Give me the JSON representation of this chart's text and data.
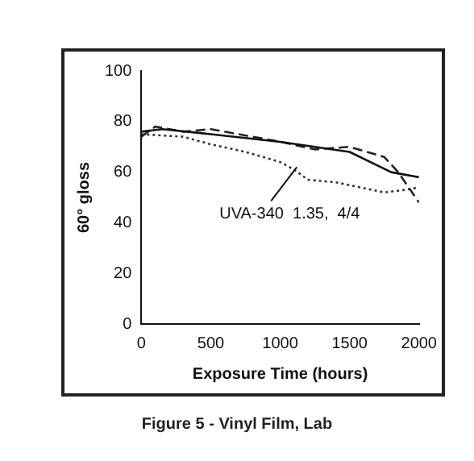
{
  "chart_data": {
    "type": "line",
    "title": "Figure 5 - Vinyl Film, Lab",
    "xlabel": "Exposure Time (hours)",
    "ylabel": "60° gloss",
    "xlim": [
      0,
      2000
    ],
    "xticks": [
      0,
      500,
      1000,
      1500,
      2000
    ],
    "ylim": [
      0,
      100
    ],
    "yticks": [
      0,
      20,
      40,
      60,
      80,
      100
    ],
    "grid": false,
    "legend": false,
    "marker": "none",
    "series": [
      {
        "color": "#111111",
        "line_style": "solid",
        "x": [
          0,
          150,
          500,
          1000,
          1250,
          1500,
          1800,
          2000
        ],
        "values": [
          76,
          77,
          75,
          72,
          70,
          68,
          60,
          58
        ]
      },
      {
        "color": "#222222",
        "line_style": "dashed",
        "x": [
          0,
          100,
          300,
          500,
          1000,
          1250,
          1500,
          1750,
          1850,
          2000
        ],
        "values": [
          74,
          78,
          76,
          77,
          72,
          69,
          70,
          66,
          60,
          48
        ]
      },
      {
        "color": "#333333",
        "line_style": "dotted",
        "x": [
          0,
          300,
          500,
          750,
          1000,
          1100,
          1200,
          1400,
          1750,
          1900,
          2000
        ],
        "values": [
          75,
          74,
          71,
          68,
          64,
          61,
          57,
          56,
          52,
          53,
          54
        ]
      }
    ],
    "annotations": [
      {
        "text": "UVA-340  1.35,  4/4",
        "x": 1120,
        "y": 62
      }
    ]
  }
}
